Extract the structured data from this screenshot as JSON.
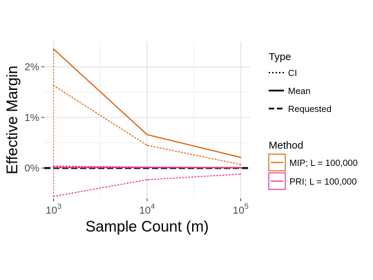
{
  "chart_data": {
    "type": "line",
    "xlabel": "Sample Count (m)",
    "ylabel": "Effective Margin",
    "x_scale": "log10",
    "xlim": [
      1000,
      100000
    ],
    "ylim": [
      -0.006,
      0.025
    ],
    "x_ticks": [
      {
        "value": 1000,
        "base": "10",
        "exp": "3"
      },
      {
        "value": 10000,
        "base": "10",
        "exp": "4"
      },
      {
        "value": 100000,
        "base": "10",
        "exp": "5"
      }
    ],
    "y_ticks": [
      {
        "value": 0.0,
        "label": "0%"
      },
      {
        "value": 0.01,
        "label": "1%"
      },
      {
        "value": 0.02,
        "label": "2%"
      }
    ],
    "grid": true,
    "legend_position": "right",
    "legend": {
      "type": {
        "title": "Type",
        "items": [
          {
            "label": "CI",
            "linetype": "dotted"
          },
          {
            "label": "Mean",
            "linetype": "solid"
          },
          {
            "label": "Requested",
            "linetype": "dashed"
          }
        ]
      },
      "method": {
        "title": "Method",
        "items": [
          {
            "label": "MIP; L = 100,000",
            "color": "#d95f02"
          },
          {
            "label": "PRI; L = 100,000",
            "color": "#e7298a"
          }
        ]
      }
    },
    "x": [
      1000,
      10000,
      100000
    ],
    "series": [
      {
        "name": "MIP; L = 100,000",
        "type": "Mean",
        "color": "#d95f02",
        "linetype": "solid",
        "values": [
          0.0235,
          0.0066,
          0.0021
        ]
      },
      {
        "name": "MIP; L = 100,000",
        "type": "CI",
        "color": "#d95f02",
        "linetype": "dotted",
        "values": [
          0.0163,
          0.0045,
          0.0007
        ]
      },
      {
        "name": "MIP; L = 100,000",
        "type": "CI",
        "color": "#d95f02",
        "linetype": "dotted",
        "values": [
          0.0003,
          0.0001,
          0.0
        ]
      },
      {
        "name": "PRI; L = 100,000",
        "type": "Mean",
        "color": "#e7298a",
        "linetype": "solid",
        "values": [
          0.0001,
          0.0001,
          0.0001
        ]
      },
      {
        "name": "PRI; L = 100,000",
        "type": "CI",
        "color": "#e7298a",
        "linetype": "dotted",
        "values": [
          -0.0056,
          -0.0023,
          -0.0012
        ]
      },
      {
        "name": "PRI; L = 100,000",
        "type": "CI",
        "color": "#e7298a",
        "linetype": "dotted",
        "values": [
          0.0004,
          0.0002,
          0.0001
        ]
      }
    ],
    "reference_line": {
      "type": "Requested",
      "value": 0.0,
      "color": "#000000",
      "linetype": "dashed"
    }
  }
}
